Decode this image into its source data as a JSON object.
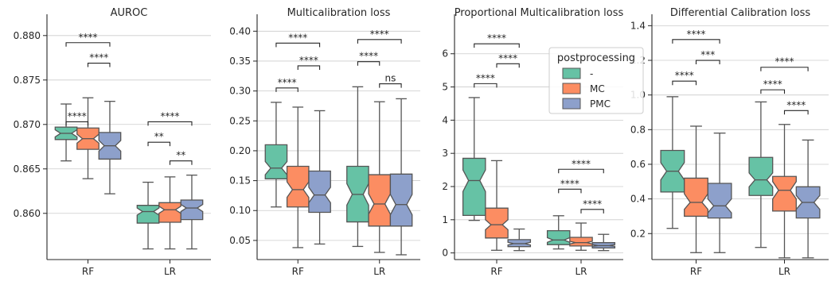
{
  "colors": {
    "-": "#66c2a5",
    "MC": "#fc8d62",
    "PMC": "#8da0cb",
    "edge": "#555555",
    "grid": "#cccccc",
    "axis": "#262626"
  },
  "legend": {
    "title": "postprocessing",
    "entries": [
      "-",
      "MC",
      "PMC"
    ],
    "location": "upper-right of panel 3"
  },
  "chart_data": [
    {
      "type": "box",
      "title": "AUROC",
      "categories": [
        "RF",
        "LR"
      ],
      "hue": [
        "-",
        "MC",
        "PMC"
      ],
      "ylim": [
        0.8548,
        0.8815
      ],
      "yticks": [
        0.86,
        0.865,
        0.87,
        0.875,
        0.88
      ],
      "ytick_labels": [
        "0.860",
        "0.865",
        "0.870",
        "0.875",
        "0.880"
      ],
      "grid": true,
      "boxes": {
        "RF": {
          "-": {
            "whislo": 0.8659,
            "q1": 0.8683,
            "med": 0.869,
            "q3": 0.8697,
            "whishi": 0.8723,
            "nlo": 0.8686,
            "nhi": 0.8694
          },
          "MC": {
            "whislo": 0.8639,
            "q1": 0.8672,
            "med": 0.8684,
            "q3": 0.8696,
            "whishi": 0.873,
            "nlo": 0.8679,
            "nhi": 0.8689
          },
          "PMC": {
            "whislo": 0.8622,
            "q1": 0.8661,
            "med": 0.8676,
            "q3": 0.8691,
            "whishi": 0.8726,
            "nlo": 0.867,
            "nhi": 0.8682
          }
        },
        "LR": {
          "-": {
            "whislo": 0.856,
            "q1": 0.8589,
            "med": 0.8602,
            "q3": 0.8609,
            "whishi": 0.8635,
            "nlo": 0.8598,
            "nhi": 0.8606
          },
          "MC": {
            "whislo": 0.856,
            "q1": 0.859,
            "med": 0.8604,
            "q3": 0.8612,
            "whishi": 0.8641,
            "nlo": 0.86,
            "nhi": 0.8608
          },
          "PMC": {
            "whislo": 0.856,
            "q1": 0.8593,
            "med": 0.8606,
            "q3": 0.8615,
            "whishi": 0.8643,
            "nlo": 0.8602,
            "nhi": 0.861
          }
        }
      },
      "annotations": [
        {
          "group": "RF",
          "from": "-",
          "to": "MC",
          "y": 0.8703,
          "label": "****"
        },
        {
          "group": "RF",
          "from": "MC",
          "to": "PMC",
          "y": 0.8769,
          "label": "****"
        },
        {
          "group": "RF",
          "from": "-",
          "to": "PMC",
          "y": 0.8792,
          "label": "****"
        },
        {
          "group": "LR",
          "from": "-",
          "to": "MC",
          "y": 0.868,
          "label": "**"
        },
        {
          "group": "LR",
          "from": "MC",
          "to": "PMC",
          "y": 0.8659,
          "label": "**"
        },
        {
          "group": "LR",
          "from": "-",
          "to": "PMC",
          "y": 0.8703,
          "label": "****"
        }
      ]
    },
    {
      "type": "box",
      "title": "Multicalibration loss",
      "categories": [
        "RF",
        "LR"
      ],
      "hue": [
        "-",
        "MC",
        "PMC"
      ],
      "ylim": [
        0.018,
        0.415
      ],
      "yticks": [
        0.05,
        0.1,
        0.15,
        0.2,
        0.25,
        0.3,
        0.35,
        0.4
      ],
      "ytick_labels": [
        "0.05",
        "0.10",
        "0.15",
        "0.20",
        "0.25",
        "0.30",
        "0.35",
        "0.40"
      ],
      "grid": true,
      "boxes": {
        "RF": {
          "-": {
            "whislo": 0.106,
            "q1": 0.153,
            "med": 0.171,
            "q3": 0.21,
            "whishi": 0.281,
            "nlo": 0.16,
            "nhi": 0.182
          },
          "MC": {
            "whislo": 0.038,
            "q1": 0.106,
            "med": 0.135,
            "q3": 0.174,
            "whishi": 0.273,
            "nlo": 0.122,
            "nhi": 0.148
          },
          "PMC": {
            "whislo": 0.044,
            "q1": 0.097,
            "med": 0.126,
            "q3": 0.166,
            "whishi": 0.267,
            "nlo": 0.113,
            "nhi": 0.139
          }
        },
        "LR": {
          "-": {
            "whislo": 0.04,
            "q1": 0.081,
            "med": 0.127,
            "q3": 0.174,
            "whishi": 0.307,
            "nlo": 0.109,
            "nhi": 0.145
          },
          "MC": {
            "whislo": 0.03,
            "q1": 0.074,
            "med": 0.111,
            "q3": 0.16,
            "whishi": 0.282,
            "nlo": 0.094,
            "nhi": 0.128
          },
          "PMC": {
            "whislo": 0.026,
            "q1": 0.074,
            "med": 0.11,
            "q3": 0.161,
            "whishi": 0.287,
            "nlo": 0.093,
            "nhi": 0.127
          }
        }
      },
      "annotations": [
        {
          "group": "RF",
          "from": "-",
          "to": "MC",
          "y": 0.305,
          "label": "****"
        },
        {
          "group": "RF",
          "from": "MC",
          "to": "PMC",
          "y": 0.342,
          "label": "****"
        },
        {
          "group": "RF",
          "from": "-",
          "to": "PMC",
          "y": 0.38,
          "label": "****"
        },
        {
          "group": "LR",
          "from": "-",
          "to": "MC",
          "y": 0.349,
          "label": "****"
        },
        {
          "group": "LR",
          "from": "MC",
          "to": "PMC",
          "y": 0.312,
          "label": "ns"
        },
        {
          "group": "LR",
          "from": "-",
          "to": "PMC",
          "y": 0.386,
          "label": "****"
        }
      ]
    },
    {
      "type": "box",
      "title": "Proportional Multicalibration loss",
      "categories": [
        "RF",
        "LR"
      ],
      "hue": [
        "-",
        "MC",
        "PMC"
      ],
      "ylim": [
        -0.2,
        6.95
      ],
      "yticks": [
        0,
        1,
        2,
        3,
        4,
        5,
        6
      ],
      "ytick_labels": [
        "0",
        "1",
        "2",
        "3",
        "4",
        "5",
        "6"
      ],
      "grid": true,
      "boxes": {
        "RF": {
          "-": {
            "whislo": 0.98,
            "q1": 1.13,
            "med": 2.18,
            "q3": 2.85,
            "whishi": 4.68,
            "nlo": 1.85,
            "nhi": 2.5
          },
          "MC": {
            "whislo": 0.08,
            "q1": 0.45,
            "med": 0.85,
            "q3": 1.35,
            "whishi": 2.78,
            "nlo": 0.7,
            "nhi": 1.0
          },
          "PMC": {
            "whislo": 0.07,
            "q1": 0.19,
            "med": 0.28,
            "q3": 0.4,
            "whishi": 0.72,
            "nlo": 0.24,
            "nhi": 0.32
          }
        },
        "LR": {
          "-": {
            "whislo": 0.12,
            "q1": 0.25,
            "med": 0.39,
            "q3": 0.67,
            "whishi": 1.12,
            "nlo": 0.32,
            "nhi": 0.46
          },
          "MC": {
            "whislo": 0.08,
            "q1": 0.21,
            "med": 0.31,
            "q3": 0.47,
            "whishi": 0.9,
            "nlo": 0.27,
            "nhi": 0.35
          },
          "PMC": {
            "whislo": 0.07,
            "q1": 0.15,
            "med": 0.22,
            "q3": 0.31,
            "whishi": 0.56,
            "nlo": 0.2,
            "nhi": 0.25
          }
        }
      },
      "annotations": [
        {
          "group": "RF",
          "from": "-",
          "to": "MC",
          "y": 5.1,
          "label": "****"
        },
        {
          "group": "RF",
          "from": "MC",
          "to": "PMC",
          "y": 5.7,
          "label": "****"
        },
        {
          "group": "RF",
          "from": "-",
          "to": "PMC",
          "y": 6.3,
          "label": "****"
        },
        {
          "group": "LR",
          "from": "-",
          "to": "MC",
          "y": 1.92,
          "label": "****"
        },
        {
          "group": "LR",
          "from": "MC",
          "to": "PMC",
          "y": 1.31,
          "label": "****"
        },
        {
          "group": "LR",
          "from": "-",
          "to": "PMC",
          "y": 2.52,
          "label": "****"
        }
      ]
    },
    {
      "type": "box",
      "title": "Differential Calibration loss",
      "categories": [
        "RF",
        "LR"
      ],
      "hue": [
        "-",
        "MC",
        "PMC"
      ],
      "ylim": [
        0.05,
        1.42
      ],
      "yticks": [
        0.2,
        0.4,
        0.6,
        0.8,
        1.0,
        1.2,
        1.4
      ],
      "ytick_labels": [
        "0.2",
        "0.4",
        "0.6",
        "0.8",
        "1.0",
        "1.2",
        "1.4"
      ],
      "grid": true,
      "boxes": {
        "RF": {
          "-": {
            "whislo": 0.23,
            "q1": 0.44,
            "med": 0.56,
            "q3": 0.68,
            "whishi": 0.99,
            "nlo": 0.51,
            "nhi": 0.61
          },
          "MC": {
            "whislo": 0.09,
            "q1": 0.3,
            "med": 0.38,
            "q3": 0.52,
            "whishi": 0.82,
            "nlo": 0.34,
            "nhi": 0.43
          },
          "PMC": {
            "whislo": 0.09,
            "q1": 0.29,
            "med": 0.36,
            "q3": 0.49,
            "whishi": 0.78,
            "nlo": 0.32,
            "nhi": 0.4
          }
        },
        "LR": {
          "-": {
            "whislo": 0.12,
            "q1": 0.42,
            "med": 0.51,
            "q3": 0.64,
            "whishi": 0.96,
            "nlo": 0.47,
            "nhi": 0.55
          },
          "MC": {
            "whislo": 0.06,
            "q1": 0.33,
            "med": 0.45,
            "q3": 0.53,
            "whishi": 0.83,
            "nlo": 0.4,
            "nhi": 0.5
          },
          "PMC": {
            "whislo": 0.06,
            "q1": 0.29,
            "med": 0.38,
            "q3": 0.47,
            "whishi": 0.74,
            "nlo": 0.34,
            "nhi": 0.42
          }
        }
      },
      "annotations": [
        {
          "group": "RF",
          "from": "-",
          "to": "MC",
          "y": 1.08,
          "label": "****"
        },
        {
          "group": "RF",
          "from": "MC",
          "to": "PMC",
          "y": 1.2,
          "label": "***"
        },
        {
          "group": "RF",
          "from": "-",
          "to": "PMC",
          "y": 1.32,
          "label": "****"
        },
        {
          "group": "LR",
          "from": "-",
          "to": "MC",
          "y": 1.03,
          "label": "****"
        },
        {
          "group": "LR",
          "from": "MC",
          "to": "PMC",
          "y": 0.91,
          "label": "****"
        },
        {
          "group": "LR",
          "from": "-",
          "to": "PMC",
          "y": 1.16,
          "label": "****"
        }
      ]
    }
  ]
}
